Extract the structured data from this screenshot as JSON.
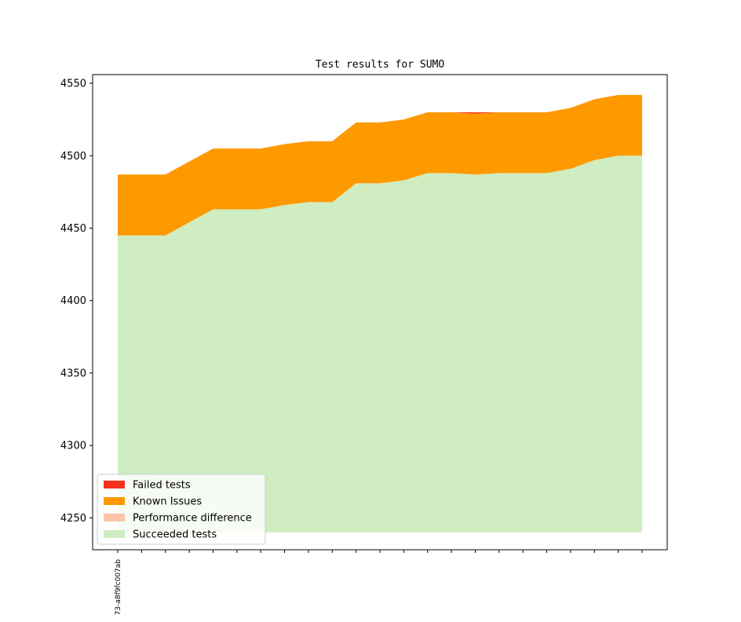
{
  "chart_data": {
    "type": "area",
    "title": "Test results for SUMO",
    "xlabel": "",
    "ylabel": "",
    "x_tick_labels": [
      "73-a8f9fc007ab"
    ],
    "n_points": 23,
    "ylim": [
      4228,
      4556
    ],
    "yticks": [
      4250,
      4300,
      4350,
      4400,
      4450,
      4500,
      4550
    ],
    "baseline": 4240,
    "legend_position": "lower-left",
    "series": [
      {
        "name": "Succeeded tests",
        "color": "#cfedc0",
        "values": [
          4445,
          4445,
          4445,
          4454,
          4463,
          4463,
          4463,
          4466,
          4468,
          4468,
          4481,
          4481,
          4483,
          4488,
          4488,
          4487,
          4488,
          4488,
          4488,
          4491,
          4497,
          4500,
          4500
        ]
      },
      {
        "name": "Performance difference",
        "color": "#fcc3a8",
        "values": [
          0,
          0,
          0,
          0,
          0,
          0,
          0,
          0,
          0,
          0,
          0,
          0,
          0,
          0,
          0,
          0,
          0,
          0,
          0,
          0,
          0,
          0,
          0
        ]
      },
      {
        "name": "Known Issues",
        "color": "#fe9900",
        "values": [
          42,
          42,
          42,
          42,
          42,
          42,
          42,
          42,
          42,
          42,
          42,
          42,
          42,
          42,
          42,
          42,
          42,
          42,
          42,
          42,
          42,
          42,
          42
        ]
      },
      {
        "name": "Failed tests",
        "color": "#f4311d",
        "values": [
          0,
          0,
          0,
          0,
          0,
          0,
          0,
          0,
          0,
          0,
          0,
          0,
          0,
          0,
          0,
          1,
          0,
          0,
          0,
          0,
          0,
          0,
          0
        ]
      }
    ],
    "legend_order": [
      "Failed tests",
      "Known Issues",
      "Performance difference",
      "Succeeded tests"
    ]
  }
}
